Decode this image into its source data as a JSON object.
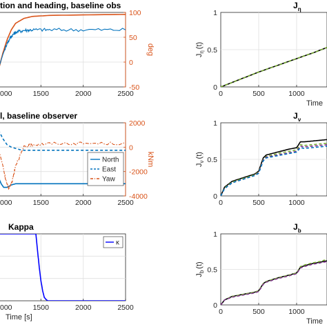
{
  "colors": {
    "blue": "#0072BD",
    "orange": "#D95319",
    "green": "#77AC30",
    "purple": "#7E2F8E",
    "black": "#000000",
    "axis": "#262626",
    "grid": "#DFDFDF"
  },
  "chart_data": [
    {
      "id": "position_heading",
      "type": "line",
      "title": "tion and heading, baseline obs",
      "xlabel": "",
      "ylabel_right": "deg",
      "xlim": [
        1000,
        2500
      ],
      "ylim_left": [
        0,
        100
      ],
      "ylim_right": [
        -50,
        100
      ],
      "xticks": [
        "000",
        "1500",
        "2000",
        "2500"
      ],
      "yticks_right": [
        "100",
        "50",
        "0",
        "-50"
      ],
      "grid": true,
      "series": [
        {
          "axis": "right",
          "color": "#D95319",
          "x": [
            1000,
            1050,
            1100,
            1150,
            1200,
            1300,
            1400,
            1600,
            2000,
            2500
          ],
          "values": [
            -15,
            18,
            45,
            65,
            78,
            88,
            92,
            94,
            95,
            96
          ]
        },
        {
          "axis": "right",
          "color": "#0072BD",
          "noise": 3.5,
          "x": [
            1000,
            1050,
            1100,
            1150,
            1200,
            1300,
            1400,
            1600,
            2000,
            2500
          ],
          "values": [
            -12,
            15,
            38,
            52,
            60,
            64,
            65,
            65,
            65,
            65
          ]
        }
      ]
    },
    {
      "id": "j_eta",
      "type": "line",
      "title": "J",
      "title_sub": "η",
      "ylabel": "J",
      "ylabel_sub": "η",
      "ylabel_tail": "(t)",
      "xlabel": "Time",
      "xlim": [
        0,
        1400
      ],
      "ylim": [
        0,
        1
      ],
      "xticks": [
        "0",
        "500",
        "1000"
      ],
      "yticks": [
        "0",
        "0.5",
        "1"
      ],
      "grid": true,
      "series": [
        {
          "color": "#000000",
          "x": [
            0,
            250,
            500,
            750,
            1000,
            1250,
            1400
          ],
          "values": [
            0,
            0.1,
            0.2,
            0.29,
            0.38,
            0.47,
            0.53
          ]
        },
        {
          "color": "#77AC30",
          "dashed": true,
          "x": [
            0,
            250,
            500,
            750,
            1000,
            1250,
            1400
          ],
          "values": [
            0,
            0.1,
            0.2,
            0.29,
            0.38,
            0.47,
            0.53
          ]
        }
      ]
    },
    {
      "id": "baseline_observer",
      "type": "line",
      "title": "l, baseline observer",
      "xlabel": "",
      "ylabel_right": "kNm",
      "xlim": [
        1000,
        2500
      ],
      "ylim_right": [
        -4000,
        2000
      ],
      "xticks": [
        "000",
        "1500",
        "2000",
        "2500"
      ],
      "yticks_right": [
        "2000",
        "0",
        "-2000",
        "-4000"
      ],
      "grid": true,
      "legend": [
        "North",
        "East",
        "Yaw"
      ],
      "legend_position": "lower-right",
      "series": [
        {
          "name": "North",
          "color": "#0072BD",
          "style": "solid",
          "x": [
            1000,
            1030,
            1060,
            1100,
            1150,
            1200,
            1300,
            1500,
            2000,
            2500
          ],
          "values": [
            -2500,
            -3000,
            -3300,
            -3300,
            -3100,
            -3000,
            -3000,
            -3000,
            -3000,
            -3000
          ]
        },
        {
          "name": "East",
          "color": "#0072BD",
          "style": "dashed",
          "x": [
            1000,
            1050,
            1100,
            1150,
            1200,
            1250,
            1300,
            1400,
            1600,
            2000,
            2500
          ],
          "values": [
            1400,
            700,
            200,
            0,
            -100,
            -200,
            -250,
            -250,
            -250,
            -250,
            -250
          ]
        },
        {
          "name": "Yaw",
          "color": "#D95319",
          "style": "dashdot",
          "noise": 120,
          "x": [
            1000,
            1050,
            1080,
            1120,
            1160,
            1200,
            1300,
            1400,
            1600,
            2000,
            2500
          ],
          "values": [
            -200,
            -1500,
            -2600,
            -3400,
            -2800,
            -1500,
            0,
            200,
            300,
            300,
            300
          ]
        }
      ]
    },
    {
      "id": "j_nu",
      "type": "line",
      "title": "J",
      "title_sub": "ν",
      "ylabel": "J",
      "ylabel_sub": "ν",
      "ylabel_tail": "(t)",
      "xlabel": "",
      "xlim": [
        0,
        1400
      ],
      "ylim": [
        0,
        1
      ],
      "xticks": [
        "0",
        "500",
        "1000"
      ],
      "yticks": [
        "0",
        "0.5",
        "1"
      ],
      "grid": true,
      "series": [
        {
          "color": "#000000",
          "x": [
            0,
            50,
            150,
            300,
            450,
            500,
            560,
            600,
            750,
            900,
            1000,
            1050,
            1100,
            1200,
            1300,
            1400
          ],
          "values": [
            0,
            0.12,
            0.2,
            0.25,
            0.3,
            0.34,
            0.52,
            0.56,
            0.6,
            0.64,
            0.66,
            0.74,
            0.74,
            0.75,
            0.76,
            0.77
          ]
        },
        {
          "color": "#77AC30",
          "dashed": true,
          "x": [
            0,
            50,
            150,
            300,
            450,
            500,
            560,
            600,
            750,
            900,
            1000,
            1050,
            1100,
            1200,
            1300,
            1400
          ],
          "values": [
            0,
            0.11,
            0.19,
            0.24,
            0.29,
            0.33,
            0.5,
            0.54,
            0.58,
            0.61,
            0.63,
            0.7,
            0.69,
            0.7,
            0.71,
            0.72
          ]
        },
        {
          "color": "#7E2F8E",
          "dashed": true,
          "x": [
            0,
            50,
            150,
            300,
            450,
            500,
            560,
            600,
            750,
            900,
            1000,
            1050,
            1100,
            1200,
            1300,
            1400
          ],
          "values": [
            0,
            0.1,
            0.18,
            0.23,
            0.28,
            0.32,
            0.49,
            0.53,
            0.56,
            0.59,
            0.61,
            0.68,
            0.67,
            0.68,
            0.69,
            0.7
          ]
        },
        {
          "color": "#0072BD",
          "dashed": true,
          "x": [
            0,
            50,
            150,
            300,
            450,
            500,
            560,
            600,
            750,
            900,
            1000,
            1050,
            1100,
            1200,
            1300,
            1400
          ],
          "values": [
            0,
            0.1,
            0.18,
            0.23,
            0.28,
            0.31,
            0.48,
            0.52,
            0.55,
            0.58,
            0.6,
            0.66,
            0.65,
            0.66,
            0.67,
            0.68
          ]
        }
      ]
    },
    {
      "id": "kappa",
      "type": "line",
      "title": "Kappa",
      "xlabel": "Time [s]",
      "xlim": [
        1000,
        2500
      ],
      "ylim": [
        0,
        1
      ],
      "xticks": [
        "000",
        "1500",
        "2000",
        "2500"
      ],
      "grid": true,
      "legend": [
        "κ"
      ],
      "legend_position": "top-right",
      "series": [
        {
          "name": "κ",
          "color": "#0000FF",
          "x": [
            1000,
            1440,
            1460,
            1480,
            1500,
            1520,
            1540,
            1560,
            1580,
            2500
          ],
          "values": [
            1,
            1,
            0.75,
            0.5,
            0.3,
            0.15,
            0.05,
            0.02,
            0,
            0
          ]
        }
      ]
    },
    {
      "id": "j_b",
      "type": "line",
      "title": "J",
      "title_sub": "b",
      "ylabel": "J",
      "ylabel_sub": "b",
      "ylabel_tail": "(t)",
      "xlabel": "Time",
      "xlim": [
        0,
        1400
      ],
      "ylim": [
        0,
        1
      ],
      "xticks": [
        "0",
        "500",
        "1000"
      ],
      "yticks": [
        "0",
        "0.5",
        "1"
      ],
      "grid": true,
      "series": [
        {
          "color": "#000000",
          "x": [
            0,
            50,
            150,
            300,
            450,
            500,
            560,
            600,
            750,
            900,
            1000,
            1050,
            1100,
            1200,
            1300,
            1400
          ],
          "values": [
            0,
            0.07,
            0.12,
            0.15,
            0.18,
            0.2,
            0.3,
            0.33,
            0.38,
            0.42,
            0.45,
            0.53,
            0.55,
            0.58,
            0.6,
            0.62
          ]
        },
        {
          "color": "#77AC30",
          "dashed": true,
          "x": [
            0,
            50,
            150,
            300,
            450,
            500,
            560,
            600,
            750,
            900,
            1000,
            1050,
            1100,
            1200,
            1300,
            1400
          ],
          "values": [
            0,
            0.07,
            0.12,
            0.15,
            0.18,
            0.2,
            0.3,
            0.33,
            0.38,
            0.42,
            0.45,
            0.54,
            0.56,
            0.59,
            0.61,
            0.64
          ]
        },
        {
          "color": "#7E2F8E",
          "dashed": true,
          "x": [
            0,
            50,
            150,
            300,
            450,
            500,
            560,
            600,
            750,
            900,
            1000,
            1050,
            1100,
            1200,
            1300,
            1400
          ],
          "values": [
            0,
            0.07,
            0.11,
            0.14,
            0.17,
            0.19,
            0.29,
            0.32,
            0.37,
            0.41,
            0.44,
            0.52,
            0.54,
            0.57,
            0.59,
            0.61
          ]
        }
      ]
    }
  ]
}
